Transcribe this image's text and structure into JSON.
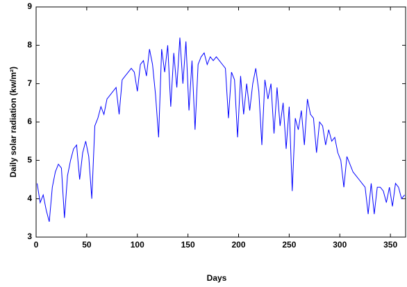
{
  "chart_data": {
    "type": "line",
    "x_label": "Days",
    "y_label": "Daily solar radiation (kw/m²)",
    "x": [
      1,
      4,
      7,
      10,
      13,
      16,
      19,
      22,
      25,
      28,
      31,
      34,
      37,
      40,
      43,
      46,
      49,
      52,
      55,
      58,
      61,
      64,
      67,
      70,
      73,
      76,
      79,
      82,
      85,
      88,
      91,
      94,
      97,
      100,
      103,
      106,
      109,
      112,
      115,
      118,
      121,
      124,
      127,
      130,
      133,
      136,
      139,
      142,
      145,
      148,
      151,
      154,
      157,
      160,
      163,
      166,
      169,
      172,
      175,
      178,
      181,
      184,
      187,
      190,
      193,
      196,
      199,
      202,
      205,
      208,
      211,
      214,
      217,
      220,
      223,
      226,
      229,
      232,
      235,
      238,
      241,
      244,
      247,
      250,
      253,
      256,
      259,
      262,
      265,
      268,
      271,
      274,
      277,
      280,
      283,
      286,
      289,
      292,
      295,
      298,
      301,
      304,
      307,
      310,
      313,
      316,
      319,
      322,
      325,
      328,
      331,
      334,
      337,
      340,
      343,
      346,
      349,
      352,
      355,
      358,
      361,
      364
    ],
    "series": [
      {
        "color": "#0000ff",
        "values": [
          4.4,
          3.9,
          4.1,
          3.7,
          3.4,
          4.3,
          4.7,
          4.9,
          4.8,
          3.5,
          4.6,
          5.0,
          5.3,
          5.4,
          4.5,
          5.2,
          5.5,
          5.1,
          4.0,
          5.9,
          6.1,
          6.4,
          6.2,
          6.6,
          6.7,
          6.8,
          6.9,
          6.2,
          7.1,
          7.2,
          7.3,
          7.4,
          7.3,
          6.8,
          7.5,
          7.6,
          7.2,
          7.9,
          7.5,
          6.7,
          5.6,
          7.9,
          7.3,
          8.0,
          6.4,
          7.8,
          6.9,
          8.2,
          7.0,
          8.1,
          6.3,
          7.6,
          5.8,
          7.5,
          7.7,
          7.8,
          7.5,
          7.7,
          7.6,
          7.7,
          7.6,
          7.5,
          7.4,
          6.1,
          7.3,
          7.1,
          5.6,
          7.2,
          6.2,
          7.0,
          6.3,
          7.0,
          7.4,
          6.8,
          5.4,
          7.1,
          6.6,
          7.0,
          5.7,
          6.9,
          5.9,
          6.5,
          5.3,
          6.4,
          4.2,
          6.1,
          5.8,
          6.3,
          5.4,
          6.6,
          6.2,
          6.1,
          5.2,
          6.0,
          5.9,
          5.4,
          5.8,
          5.5,
          5.6,
          5.2,
          5.0,
          4.3,
          5.1,
          4.9,
          4.7,
          4.6,
          4.5,
          4.4,
          4.3,
          3.6,
          4.4,
          3.6,
          4.3,
          4.3,
          4.2,
          3.9,
          4.3,
          3.8,
          4.4,
          4.3,
          4.0,
          4.1
        ]
      }
    ],
    "xlim": [
      0,
      365
    ],
    "ylim": [
      3,
      9
    ],
    "xticks": [
      0,
      50,
      100,
      150,
      200,
      250,
      300,
      350
    ],
    "yticks": [
      3,
      4,
      5,
      6,
      7,
      8,
      9
    ]
  }
}
